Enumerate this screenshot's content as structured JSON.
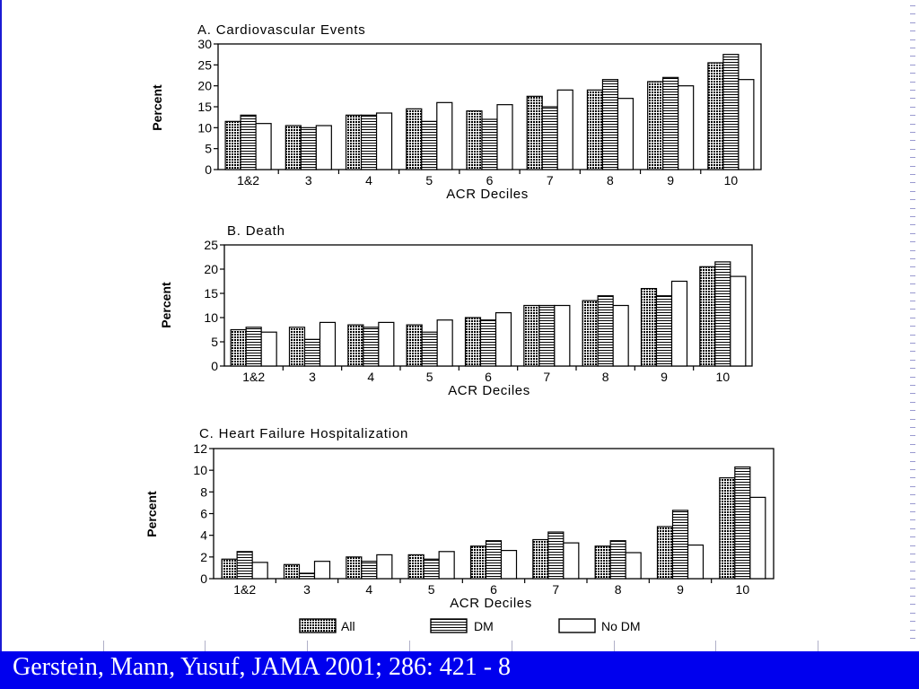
{
  "citation": "Gerstein, Mann, Yusuf, JAMA 2001; 286: 421 - 8",
  "legend": [
    {
      "name": "All",
      "fill": "cross"
    },
    {
      "name": "DM",
      "fill": "horizontal"
    },
    {
      "name": "No DM",
      "fill": "none"
    }
  ],
  "chart_data": [
    {
      "type": "bar",
      "title": "A. Cardiovascular Events",
      "xlabel": "ACR Deciles",
      "ylabel": "Percent",
      "ylim": [
        0,
        30
      ],
      "yticks": [
        0,
        5,
        10,
        15,
        20,
        25,
        30
      ],
      "categories": [
        "1&2",
        "3",
        "4",
        "5",
        "6",
        "7",
        "8",
        "9",
        "10"
      ],
      "series": [
        {
          "name": "All",
          "values": [
            11.5,
            10.5,
            13,
            14.5,
            14,
            17.5,
            19,
            21,
            25.5
          ]
        },
        {
          "name": "DM",
          "values": [
            13,
            10,
            13,
            11.5,
            12,
            15,
            21.5,
            22,
            27.5
          ]
        },
        {
          "name": "No DM",
          "values": [
            11,
            10.5,
            13.5,
            16,
            15.5,
            19,
            17,
            20,
            21.5
          ]
        }
      ]
    },
    {
      "type": "bar",
      "title": "B. Death",
      "xlabel": "ACR Deciles",
      "ylabel": "Percent",
      "ylim": [
        0,
        25
      ],
      "yticks": [
        0,
        5,
        10,
        15,
        20,
        25
      ],
      "categories": [
        "1&2",
        "3",
        "4",
        "5",
        "6",
        "7",
        "8",
        "9",
        "10"
      ],
      "series": [
        {
          "name": "All",
          "values": [
            7.5,
            8,
            8.5,
            8.5,
            10,
            12.5,
            13.5,
            16,
            20.5
          ]
        },
        {
          "name": "DM",
          "values": [
            8,
            5.5,
            8,
            7,
            9.5,
            12.5,
            14.5,
            14.5,
            21.5
          ]
        },
        {
          "name": "No DM",
          "values": [
            7,
            9,
            9,
            9.5,
            11,
            12.5,
            12.5,
            17.5,
            18.5
          ]
        }
      ]
    },
    {
      "type": "bar",
      "title": "C. Heart Failure Hospitalization",
      "xlabel": "ACR Deciles",
      "ylabel": "Percent",
      "ylim": [
        0,
        12
      ],
      "yticks": [
        0,
        2,
        4,
        6,
        8,
        10,
        12
      ],
      "categories": [
        "1&2",
        "3",
        "4",
        "5",
        "6",
        "7",
        "8",
        "9",
        "10"
      ],
      "series": [
        {
          "name": "All",
          "values": [
            1.8,
            1.3,
            2,
            2.2,
            3,
            3.6,
            3,
            4.8,
            9.3
          ]
        },
        {
          "name": "DM",
          "values": [
            2.5,
            0.5,
            1.6,
            1.8,
            3.5,
            4.3,
            3.5,
            6.3,
            10.3
          ]
        },
        {
          "name": "No DM",
          "values": [
            1.5,
            1.6,
            2.2,
            2.5,
            2.6,
            3.3,
            2.4,
            3.1,
            7.5
          ]
        }
      ]
    }
  ]
}
